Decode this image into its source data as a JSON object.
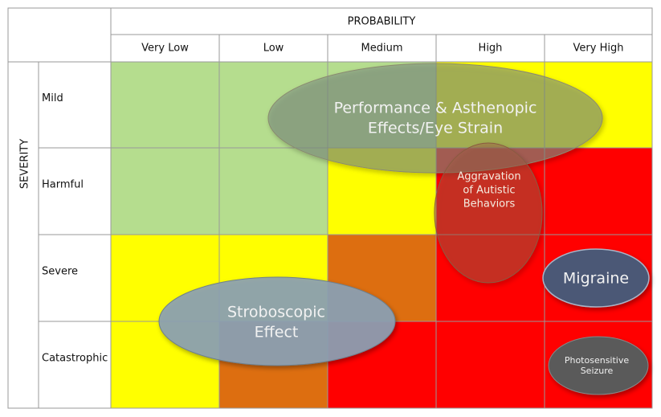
{
  "header": {
    "title": "PROBABILITY",
    "columns": [
      "Very Low",
      "Low",
      "Medium",
      "High",
      "Very High"
    ]
  },
  "side": {
    "title": "SEVERITY",
    "rows": [
      "Mild",
      "Harmful",
      "Severe",
      "Catastrophic"
    ]
  },
  "cells": [
    [
      "#b5dd8e",
      "#b5dd8e",
      "#b5dd8e",
      "#ffff00",
      "#ffff00"
    ],
    [
      "#b5dd8e",
      "#b5dd8e",
      "#ffff00",
      "#ff0000",
      "#ff0000"
    ],
    [
      "#ffff00",
      "#ffff00",
      "#dd6e10",
      "#ff0000",
      "#ff0000"
    ],
    [
      "#ffff00",
      "#dd6e10",
      "#ff0000",
      "#ff0000",
      "#ff0000"
    ]
  ],
  "overlays": [
    {
      "lines": [
        "Performance & Asthenopic",
        "Effects/Eye Strain"
      ]
    },
    {
      "lines": [
        "Aggravation",
        "of Autistic",
        "Behaviors"
      ]
    },
    {
      "lines": [
        "Migraine"
      ]
    },
    {
      "lines": [
        "Stroboscopic",
        "Effect"
      ]
    },
    {
      "lines": [
        "Photosensitive",
        "Seizure"
      ]
    }
  ]
}
